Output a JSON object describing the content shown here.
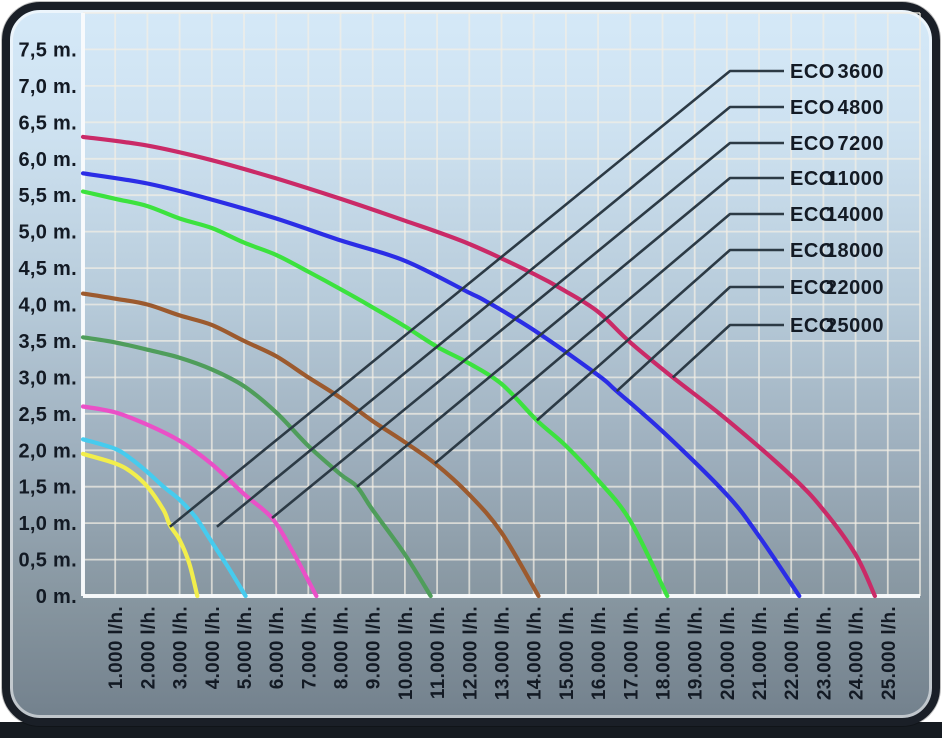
{
  "chart_data": {
    "type": "line",
    "title": "",
    "x_axis": {
      "unit_suffix": "l/h.",
      "tick_step_lh": 1000,
      "range_lh": [
        0,
        26000
      ],
      "tick_labels": [
        "1.000 l/h.",
        "2.000 l/h.",
        "3.000 l/h.",
        "4.000 l/h.",
        "5.000 l/h.",
        "6.000 l/h.",
        "7.000 l/h.",
        "8.000 l/h.",
        "9.000 l/h.",
        "10.000 l/h.",
        "11.000 l/h.",
        "12.000 l/h.",
        "13.000 l/h.",
        "14.000 l/h.",
        "15.000 l/h.",
        "16.000 l/h.",
        "17.000 l/h.",
        "18.000 l/h.",
        "19.000 l/h.",
        "20.000 l/h.",
        "21.000 l/h.",
        "22.000 l/h.",
        "23.000 l/h.",
        "24.000 l/h.",
        "25.000 l/h."
      ]
    },
    "y_axis": {
      "unit_suffix": "m.",
      "tick_step_m": 0.5,
      "range_m": [
        0,
        8
      ],
      "tick_labels": [
        "0 m.",
        "0,5 m.",
        "1,0 m.",
        "1,5 m.",
        "2,0 m.",
        "2,5 m.",
        "3,0 m.",
        "3,5 m.",
        "4,0 m.",
        "4,5 m.",
        "5,0 m.",
        "5,5 m.",
        "6,0 m.",
        "6,5 m.",
        "7,0 m.",
        "7,5 m."
      ]
    },
    "grid": true,
    "legend": {
      "position": "upper-right",
      "style": "callout-lines"
    },
    "series": [
      {
        "name": "ECO 3600",
        "color": "#f2ee4c",
        "points": [
          [
            0,
            1.95
          ],
          [
            1000,
            1.82
          ],
          [
            1500,
            1.7
          ],
          [
            2000,
            1.5
          ],
          [
            2500,
            1.18
          ],
          [
            2700,
            0.97
          ],
          [
            3000,
            0.77
          ],
          [
            3300,
            0.45
          ],
          [
            3550,
            0
          ]
        ],
        "callout_point": [
          2700,
          0.95
        ]
      },
      {
        "name": "ECO 4800",
        "color": "#46cbee",
        "points": [
          [
            0,
            2.15
          ],
          [
            1000,
            2.02
          ],
          [
            1500,
            1.88
          ],
          [
            2000,
            1.7
          ],
          [
            2500,
            1.5
          ],
          [
            3000,
            1.32
          ],
          [
            3500,
            1.08
          ],
          [
            4000,
            0.74
          ],
          [
            4500,
            0.4
          ],
          [
            5050,
            0
          ]
        ],
        "callout_point": [
          4160,
          0.95
        ]
      },
      {
        "name": "ECO 7200",
        "color": "#ea50c7",
        "points": [
          [
            0,
            2.6
          ],
          [
            1000,
            2.52
          ],
          [
            2000,
            2.35
          ],
          [
            3000,
            2.13
          ],
          [
            4000,
            1.81
          ],
          [
            5000,
            1.4
          ],
          [
            5870,
            1.07
          ],
          [
            6500,
            0.62
          ],
          [
            7250,
            0
          ]
        ],
        "callout_point": [
          5870,
          1.07
        ]
      },
      {
        "name": "ECO 11000",
        "color": "#4f9d5b",
        "points": [
          [
            0,
            3.55
          ],
          [
            1000,
            3.48
          ],
          [
            2000,
            3.38
          ],
          [
            3000,
            3.27
          ],
          [
            4000,
            3.11
          ],
          [
            5000,
            2.88
          ],
          [
            6000,
            2.52
          ],
          [
            7000,
            2.06
          ],
          [
            8000,
            1.67
          ],
          [
            8510,
            1.5
          ],
          [
            9000,
            1.18
          ],
          [
            10000,
            0.57
          ],
          [
            10800,
            0
          ]
        ],
        "callout_point": [
          8510,
          1.5
        ]
      },
      {
        "name": "ECO 14000",
        "color": "#9c5a2e",
        "points": [
          [
            0,
            4.15
          ],
          [
            1000,
            4.08
          ],
          [
            2000,
            4.0
          ],
          [
            3000,
            3.85
          ],
          [
            4000,
            3.72
          ],
          [
            5000,
            3.5
          ],
          [
            6000,
            3.29
          ],
          [
            7000,
            3.0
          ],
          [
            8000,
            2.72
          ],
          [
            9000,
            2.4
          ],
          [
            10000,
            2.11
          ],
          [
            10930,
            1.82
          ],
          [
            12000,
            1.39
          ],
          [
            13000,
            0.87
          ],
          [
            14150,
            0
          ]
        ],
        "callout_point": [
          10930,
          1.82
        ]
      },
      {
        "name": "ECO 18000",
        "color": "#3ce23e",
        "points": [
          [
            0,
            5.55
          ],
          [
            1000,
            5.45
          ],
          [
            2000,
            5.35
          ],
          [
            3000,
            5.18
          ],
          [
            4000,
            5.05
          ],
          [
            5000,
            4.85
          ],
          [
            6000,
            4.68
          ],
          [
            7000,
            4.45
          ],
          [
            8000,
            4.21
          ],
          [
            9000,
            3.96
          ],
          [
            10000,
            3.7
          ],
          [
            11000,
            3.42
          ],
          [
            12000,
            3.19
          ],
          [
            13000,
            2.91
          ],
          [
            14100,
            2.41
          ],
          [
            15000,
            2.06
          ],
          [
            16000,
            1.59
          ],
          [
            17000,
            1.03
          ],
          [
            18150,
            0
          ]
        ],
        "callout_point": [
          14100,
          2.41
        ]
      },
      {
        "name": "ECO 22000",
        "color": "#2b2de6",
        "points": [
          [
            0,
            5.8
          ],
          [
            2000,
            5.66
          ],
          [
            4000,
            5.44
          ],
          [
            6000,
            5.18
          ],
          [
            8000,
            4.88
          ],
          [
            10000,
            4.6
          ],
          [
            12000,
            4.16
          ],
          [
            12500,
            4.05
          ],
          [
            14000,
            3.65
          ],
          [
            16000,
            3.03
          ],
          [
            16580,
            2.81
          ],
          [
            18000,
            2.26
          ],
          [
            20000,
            1.39
          ],
          [
            21000,
            0.82
          ],
          [
            22250,
            0
          ]
        ],
        "callout_point": [
          16580,
          2.81
        ]
      },
      {
        "name": "ECO 25000",
        "color": "#ca2a67",
        "points": [
          [
            0,
            6.3
          ],
          [
            2000,
            6.18
          ],
          [
            4000,
            5.98
          ],
          [
            6000,
            5.73
          ],
          [
            8000,
            5.45
          ],
          [
            10000,
            5.15
          ],
          [
            12000,
            4.83
          ],
          [
            14000,
            4.42
          ],
          [
            15000,
            4.18
          ],
          [
            16000,
            3.9
          ],
          [
            17000,
            3.48
          ],
          [
            18320,
            3.0
          ],
          [
            20000,
            2.42
          ],
          [
            22000,
            1.65
          ],
          [
            23000,
            1.18
          ],
          [
            24000,
            0.57
          ],
          [
            24600,
            0
          ]
        ],
        "callout_point": [
          18320,
          3.0
        ]
      }
    ]
  },
  "style": {
    "text_color": "#131a24",
    "grid_color": "rgba(242,238,229,0.72)",
    "axis_color": "rgba(249,251,253,0.95)",
    "callout_color": "#2c3a45",
    "card_border": "#1a1f27",
    "bg_top": "#d5e9f8",
    "bg_bottom": "#73818d",
    "bottom_bar": "#161b21"
  }
}
